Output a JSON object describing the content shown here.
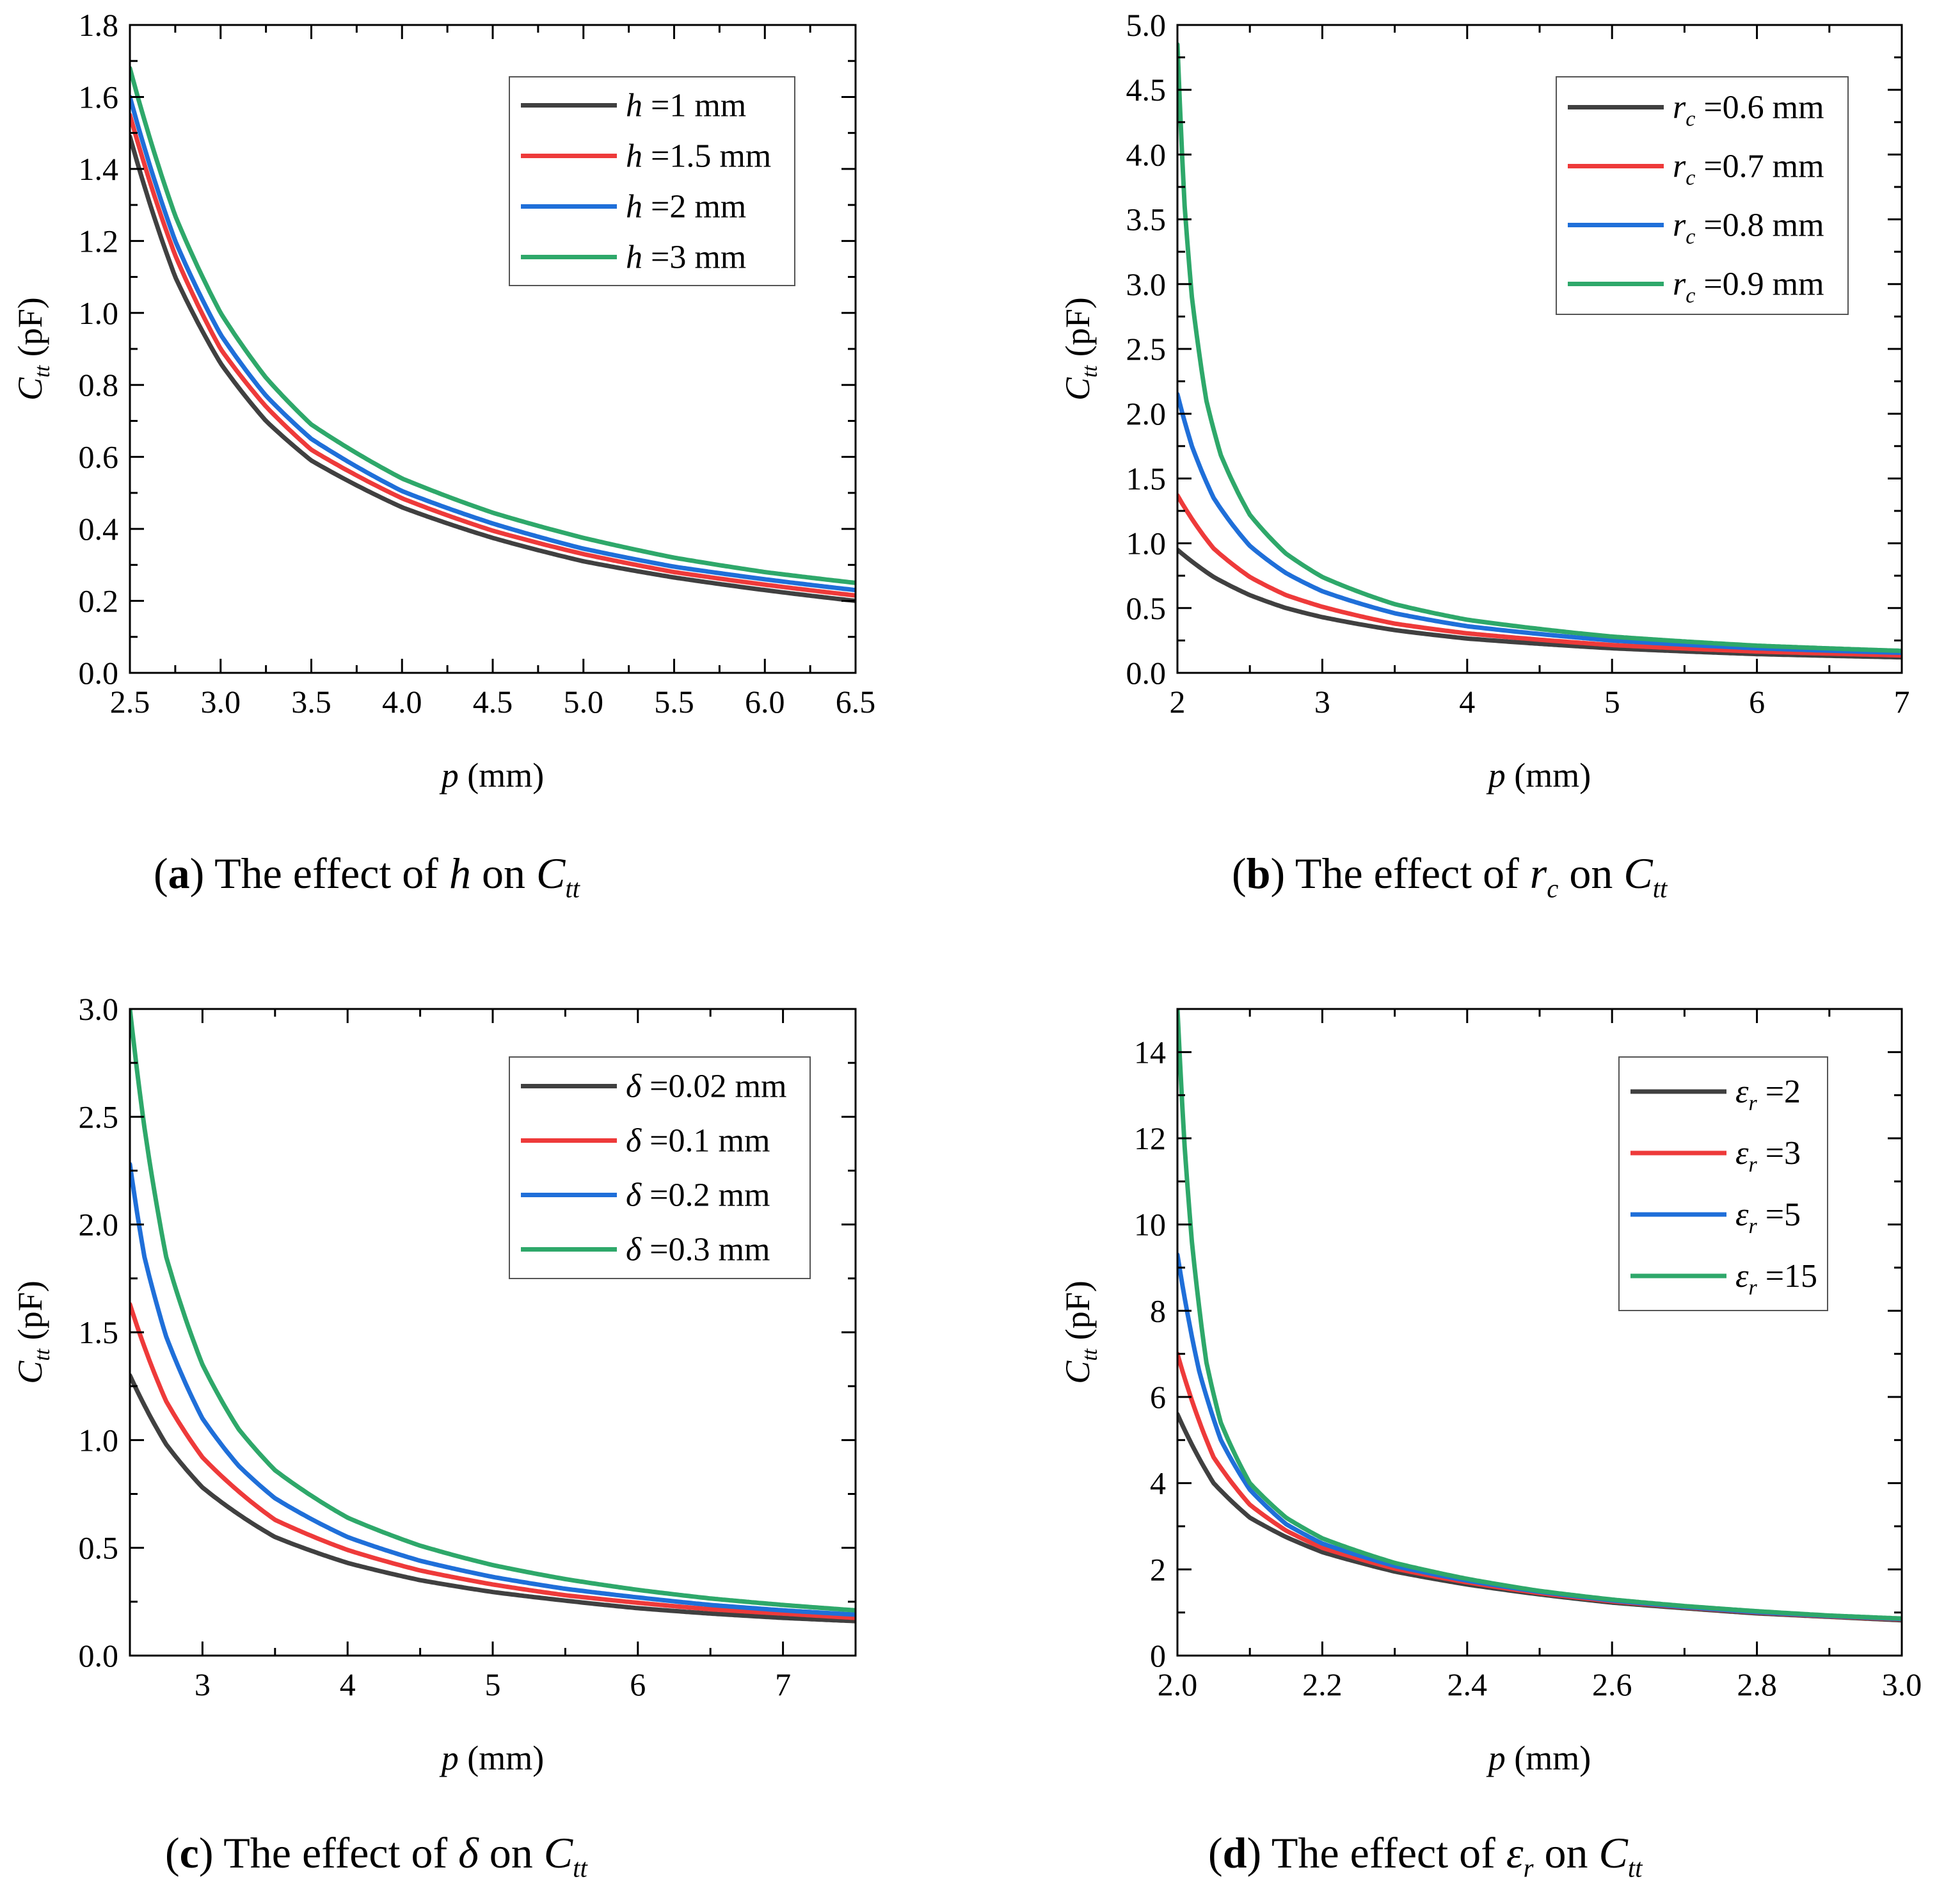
{
  "figure": {
    "captions": [
      {
        "letter": "a",
        "pre": "The effect of ",
        "sym": "h",
        "sym_sub": "",
        "post": " on ",
        "target": "C",
        "target_sub": "tt"
      },
      {
        "letter": "b",
        "pre": "The effect of ",
        "sym": "r",
        "sym_sub": "c",
        "post": " on ",
        "target": "C",
        "target_sub": "tt"
      },
      {
        "letter": "c",
        "pre": "The effect of ",
        "sym": "δ",
        "sym_sub": "",
        "post": " on ",
        "target": "C",
        "target_sub": "tt"
      },
      {
        "letter": "d",
        "pre": "The effect of ",
        "sym": "ε",
        "sym_sub": "r",
        "post": " on ",
        "target": "C",
        "target_sub": "tt"
      }
    ]
  },
  "colors": {
    "black": "#404040",
    "red": "#ee3a3a",
    "blue": "#1f6fd9",
    "green": "#2ea86a"
  },
  "chart_data": [
    {
      "type": "line",
      "panel": "a",
      "xlabel": {
        "var": "p",
        "unit": " (mm)"
      },
      "ylabel": {
        "var": "C",
        "sub": "tt",
        "unit": " (pF)"
      },
      "xlim": [
        2.5,
        6.5
      ],
      "ylim": [
        0,
        1.8
      ],
      "xticks": [
        "2.5",
        "3.0",
        "3.5",
        "4.0",
        "4.5",
        "5.0",
        "5.5",
        "6.0",
        "6.5"
      ],
      "xtick_values": [
        2.5,
        3.0,
        3.5,
        4.0,
        4.5,
        5.0,
        5.5,
        6.0,
        6.5
      ],
      "yticks": [
        "0.0",
        "0.2",
        "0.4",
        "0.6",
        "0.8",
        "1.0",
        "1.2",
        "1.4",
        "1.6",
        "1.8"
      ],
      "ytick_values": [
        0,
        0.2,
        0.4,
        0.6,
        0.8,
        1.0,
        1.2,
        1.4,
        1.6,
        1.8
      ],
      "legend_position": "top-right",
      "series": [
        {
          "name": "=1 mm",
          "sym": "h",
          "sub": "",
          "color": "black",
          "x": [
            2.5,
            2.75,
            3.0,
            3.25,
            3.5,
            4.0,
            4.5,
            5.0,
            5.5,
            6.0,
            6.5
          ],
          "y": [
            1.49,
            1.1,
            0.86,
            0.7,
            0.59,
            0.46,
            0.375,
            0.31,
            0.265,
            0.23,
            0.2
          ]
        },
        {
          "name": "=1.5 mm",
          "sym": "h",
          "sub": "",
          "color": "red",
          "x": [
            2.5,
            2.75,
            3.0,
            3.25,
            3.5,
            4.0,
            4.5,
            5.0,
            5.5,
            6.0,
            6.5
          ],
          "y": [
            1.55,
            1.16,
            0.9,
            0.74,
            0.62,
            0.485,
            0.395,
            0.33,
            0.28,
            0.245,
            0.215
          ]
        },
        {
          "name": "=2 mm",
          "sym": "h",
          "sub": "",
          "color": "blue",
          "x": [
            2.5,
            2.75,
            3.0,
            3.25,
            3.5,
            4.0,
            4.5,
            5.0,
            5.5,
            6.0,
            6.5
          ],
          "y": [
            1.6,
            1.2,
            0.94,
            0.77,
            0.65,
            0.505,
            0.415,
            0.345,
            0.295,
            0.26,
            0.23
          ]
        },
        {
          "name": "=3 mm",
          "sym": "h",
          "sub": "",
          "color": "green",
          "x": [
            2.5,
            2.75,
            3.0,
            3.25,
            3.5,
            4.0,
            4.5,
            5.0,
            5.5,
            6.0,
            6.5
          ],
          "y": [
            1.68,
            1.27,
            1.0,
            0.82,
            0.69,
            0.54,
            0.445,
            0.375,
            0.32,
            0.28,
            0.25
          ]
        }
      ]
    },
    {
      "type": "line",
      "panel": "b",
      "xlabel": {
        "var": "p",
        "unit": " (mm)"
      },
      "ylabel": {
        "var": "C",
        "sub": "tt",
        "unit": " (pF)"
      },
      "xlim": [
        2,
        7
      ],
      "ylim": [
        0,
        5.0
      ],
      "xticks": [
        "2",
        "3",
        "4",
        "5",
        "6",
        "7"
      ],
      "xtick_values": [
        2,
        3,
        4,
        5,
        6,
        7
      ],
      "yticks": [
        "0.0",
        "0.5",
        "1.0",
        "1.5",
        "2.0",
        "2.5",
        "3.0",
        "3.5",
        "4.0",
        "4.5",
        "5.0"
      ],
      "ytick_values": [
        0,
        0.5,
        1.0,
        1.5,
        2.0,
        2.5,
        3.0,
        3.5,
        4.0,
        4.5,
        5.0
      ],
      "legend_position": "top-right",
      "series": [
        {
          "name": "=0.6 mm",
          "sym": "r",
          "sub": "c",
          "color": "black",
          "x": [
            2.0,
            2.25,
            2.5,
            2.75,
            3.0,
            3.5,
            4.0,
            5.0,
            6.0,
            7.0
          ],
          "y": [
            0.95,
            0.74,
            0.6,
            0.5,
            0.43,
            0.33,
            0.265,
            0.19,
            0.145,
            0.12
          ]
        },
        {
          "name": "=0.7 mm",
          "sym": "r",
          "sub": "c",
          "color": "red",
          "x": [
            2.0,
            2.25,
            2.5,
            2.75,
            3.0,
            3.5,
            4.0,
            5.0,
            6.0,
            7.0
          ],
          "y": [
            1.37,
            0.96,
            0.74,
            0.6,
            0.51,
            0.38,
            0.305,
            0.215,
            0.165,
            0.135
          ]
        },
        {
          "name": "=0.8 mm",
          "sym": "r",
          "sub": "c",
          "color": "blue",
          "x": [
            2.0,
            2.1,
            2.25,
            2.5,
            2.75,
            3.0,
            3.5,
            4.0,
            5.0,
            6.0,
            7.0
          ],
          "y": [
            2.15,
            1.75,
            1.35,
            0.98,
            0.77,
            0.63,
            0.46,
            0.36,
            0.25,
            0.19,
            0.155
          ]
        },
        {
          "name": "=0.9 mm",
          "sym": "r",
          "sub": "c",
          "color": "green",
          "x": [
            2.0,
            2.05,
            2.1,
            2.2,
            2.3,
            2.5,
            2.75,
            3.0,
            3.5,
            4.0,
            5.0,
            6.0,
            7.0
          ],
          "y": [
            4.85,
            3.6,
            2.9,
            2.1,
            1.68,
            1.22,
            0.92,
            0.74,
            0.53,
            0.41,
            0.28,
            0.21,
            0.17
          ]
        }
      ]
    },
    {
      "type": "line",
      "panel": "c",
      "xlabel": {
        "var": "p",
        "unit": " (mm)"
      },
      "ylabel": {
        "var": "C",
        "sub": "tt",
        "unit": " (pF)"
      },
      "xlim": [
        2.5,
        7.5
      ],
      "ylim": [
        0,
        3.0
      ],
      "xticks": [
        "3",
        "4",
        "5",
        "6",
        "7"
      ],
      "xtick_values": [
        3,
        4,
        5,
        6,
        7
      ],
      "yticks": [
        "0.0",
        "0.5",
        "1.0",
        "1.5",
        "2.0",
        "2.5",
        "3.0"
      ],
      "ytick_values": [
        0,
        0.5,
        1.0,
        1.5,
        2.0,
        2.5,
        3.0
      ],
      "legend_position": "top-right",
      "series": [
        {
          "name": "=0.02 mm",
          "sym": "δ",
          "sub": "",
          "color": "black",
          "x": [
            2.5,
            2.75,
            3.0,
            3.5,
            4.0,
            4.5,
            5.0,
            5.5,
            6.0,
            6.5,
            7.0,
            7.5
          ],
          "y": [
            1.3,
            0.98,
            0.78,
            0.55,
            0.43,
            0.35,
            0.295,
            0.255,
            0.22,
            0.195,
            0.175,
            0.16
          ]
        },
        {
          "name": "=0.1 mm",
          "sym": "δ",
          "sub": "",
          "color": "red",
          "x": [
            2.5,
            2.75,
            3.0,
            3.5,
            4.0,
            4.5,
            5.0,
            5.5,
            6.0,
            6.5,
            7.0,
            7.5
          ],
          "y": [
            1.63,
            1.18,
            0.92,
            0.63,
            0.49,
            0.395,
            0.33,
            0.28,
            0.245,
            0.215,
            0.195,
            0.175
          ]
        },
        {
          "name": "=0.2 mm",
          "sym": "δ",
          "sub": "",
          "color": "blue",
          "x": [
            2.5,
            2.6,
            2.75,
            3.0,
            3.25,
            3.5,
            4.0,
            4.5,
            5.0,
            5.5,
            6.0,
            6.5,
            7.0,
            7.5
          ],
          "y": [
            2.28,
            1.85,
            1.48,
            1.1,
            0.88,
            0.73,
            0.55,
            0.44,
            0.365,
            0.31,
            0.27,
            0.235,
            0.21,
            0.19
          ]
        },
        {
          "name": "=0.3 mm",
          "sym": "δ",
          "sub": "",
          "color": "green",
          "x": [
            2.5,
            2.6,
            2.75,
            3.0,
            3.25,
            3.5,
            4.0,
            4.5,
            5.0,
            5.5,
            6.0,
            6.5,
            7.0,
            7.5
          ],
          "y": [
            3.0,
            2.45,
            1.85,
            1.35,
            1.05,
            0.86,
            0.64,
            0.51,
            0.42,
            0.355,
            0.305,
            0.265,
            0.235,
            0.21
          ]
        }
      ]
    },
    {
      "type": "line",
      "panel": "d",
      "xlabel": {
        "var": "p",
        "unit": " (mm)"
      },
      "ylabel": {
        "var": "C",
        "sub": "tt",
        "unit": " (pF)"
      },
      "xlim": [
        2.0,
        3.0
      ],
      "ylim": [
        0,
        15
      ],
      "xticks": [
        "2.0",
        "2.2",
        "2.4",
        "2.6",
        "2.8",
        "3.0"
      ],
      "xtick_values": [
        2.0,
        2.2,
        2.4,
        2.6,
        2.8,
        3.0
      ],
      "yticks": [
        "0",
        "2",
        "4",
        "6",
        "8",
        "10",
        "12",
        "14"
      ],
      "ytick_values": [
        0,
        2,
        4,
        6,
        8,
        10,
        12,
        14
      ],
      "legend_position": "top-right",
      "series": [
        {
          "name": "=2",
          "sym": "ε",
          "sub": "r",
          "color": "black",
          "x": [
            2.0,
            2.05,
            2.1,
            2.15,
            2.2,
            2.3,
            2.4,
            2.5,
            2.6,
            2.7,
            2.8,
            2.9,
            3.0
          ],
          "y": [
            5.6,
            4.0,
            3.2,
            2.75,
            2.4,
            1.95,
            1.65,
            1.42,
            1.23,
            1.1,
            0.98,
            0.9,
            0.82
          ]
        },
        {
          "name": "=3",
          "sym": "ε",
          "sub": "r",
          "color": "red",
          "x": [
            2.0,
            2.05,
            2.1,
            2.15,
            2.2,
            2.3,
            2.4,
            2.5,
            2.6,
            2.7,
            2.8,
            2.9,
            3.0
          ],
          "y": [
            7.0,
            4.6,
            3.5,
            2.9,
            2.5,
            2.02,
            1.7,
            1.45,
            1.26,
            1.12,
            1.0,
            0.91,
            0.84
          ]
        },
        {
          "name": "=5",
          "sym": "ε",
          "sub": "r",
          "color": "blue",
          "x": [
            2.0,
            2.03,
            2.06,
            2.1,
            2.15,
            2.2,
            2.3,
            2.4,
            2.5,
            2.6,
            2.7,
            2.8,
            2.9,
            3.0
          ],
          "y": [
            9.3,
            6.6,
            5.0,
            3.85,
            3.05,
            2.6,
            2.08,
            1.74,
            1.48,
            1.28,
            1.13,
            1.01,
            0.92,
            0.85
          ]
        },
        {
          "name": "=15",
          "sym": "ε",
          "sub": "r",
          "color": "green",
          "x": [
            2.0,
            2.01,
            2.02,
            2.04,
            2.06,
            2.1,
            2.15,
            2.2,
            2.3,
            2.4,
            2.5,
            2.6,
            2.7,
            2.8,
            2.9,
            3.0
          ],
          "y": [
            15.0,
            11.8,
            9.6,
            6.8,
            5.4,
            4.0,
            3.2,
            2.72,
            2.15,
            1.78,
            1.5,
            1.3,
            1.15,
            1.03,
            0.93,
            0.86
          ]
        }
      ]
    }
  ]
}
